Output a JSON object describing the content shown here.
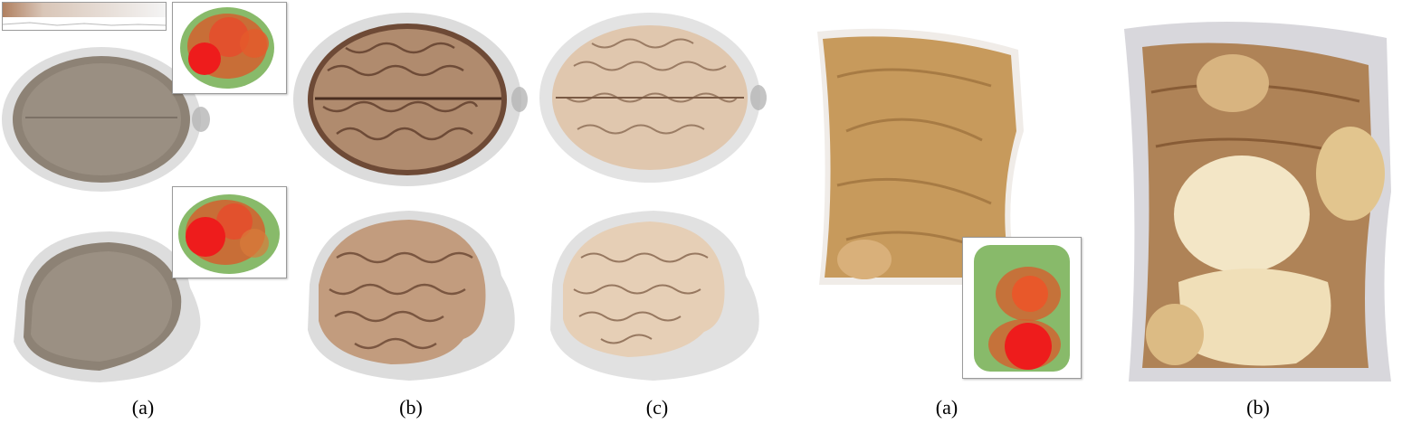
{
  "figure": {
    "captions": [
      "(a)",
      "(b)",
      "(c)",
      "(a)",
      "(b)"
    ]
  },
  "colors": {
    "brain_tissue": "#c9a88a",
    "brain_dark": "#6e4a36",
    "head_translucent": "#b9b9b9",
    "knee_tissue": "#c79a5c",
    "knee_bone": "#f3e6c6",
    "saliency_high": "#ee1c1c",
    "saliency_mid": "#e8582a",
    "saliency_low": "#6aa84f"
  }
}
